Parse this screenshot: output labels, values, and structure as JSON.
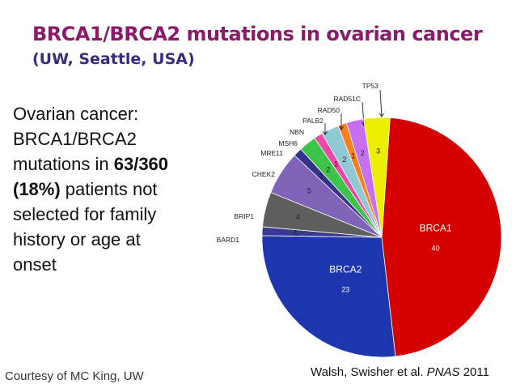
{
  "slide": {
    "title": "BRCA1/BRCA2 mutations in ovarian cancer",
    "subtitle": "(UW, Seattle, USA)",
    "body": {
      "line1": "Ovarian cancer:",
      "line2": "BRCA1/BRCA2",
      "line3_pre": "mutations in ",
      "line3_bold": "63/360",
      "line4_bold": "(18%)",
      "line4_post": " patients not",
      "line5": "selected for family",
      "line6": "history or age at",
      "line7": "onset"
    },
    "courtesy": "Courtesy of MC King, UW",
    "citation_authors": "Walsh, Swisher et al. ",
    "citation_journal": "PNAS",
    "citation_year": " 2011"
  },
  "chart_data": {
    "type": "pie",
    "title": "",
    "slices": [
      {
        "label": "BRCA1",
        "value": 40,
        "color": "#d40000"
      },
      {
        "label": "BRCA2",
        "value": 23,
        "color": "#1e35b0"
      },
      {
        "label": "BARD1",
        "value": 1,
        "color": "#3a3a8c"
      },
      {
        "label": "BRIP1",
        "value": 4,
        "color": "#5e5e5e"
      },
      {
        "label": "CHEK2",
        "value": 5,
        "color": "#7f63b8"
      },
      {
        "label": "MRE11",
        "value": 1,
        "color": "#33338a"
      },
      {
        "label": "MSH6",
        "value": 2,
        "color": "#3dc24a"
      },
      {
        "label": "NBN",
        "value": 1,
        "color": "#e84aa6"
      },
      {
        "label": "PALB2",
        "value": 2,
        "color": "#8ec9d4"
      },
      {
        "label": "RAD50",
        "value": 1,
        "color": "#ff7f1a"
      },
      {
        "label": "RAD51C",
        "value": 2,
        "color": "#c86ef0"
      },
      {
        "label": "TP53",
        "value": 3,
        "color": "#eeee00"
      }
    ]
  }
}
